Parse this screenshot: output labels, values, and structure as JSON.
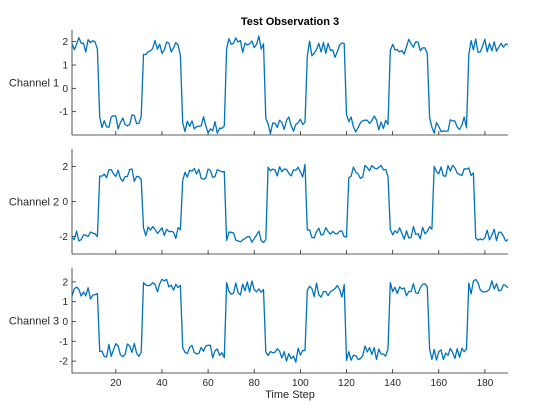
{
  "chart_data": {
    "type": "line",
    "title": "Test Observation 3",
    "xlabel": "Time Step",
    "x_range": [
      1,
      190
    ],
    "x_ticks": [
      20,
      40,
      60,
      80,
      100,
      120,
      140,
      160,
      180
    ],
    "line_color": "#0072BD",
    "grid": false,
    "panels": [
      {
        "name": "Channel 1",
        "ylim": [
          -2,
          2.5
        ],
        "y_ticks": [
          -1,
          0,
          1,
          2
        ],
        "segments": [
          {
            "from": 1,
            "to": 12,
            "value": 1.8
          },
          {
            "from": 13,
            "to": 31,
            "value": -1.45
          },
          {
            "from": 32,
            "to": 48,
            "value": 1.7
          },
          {
            "from": 49,
            "to": 67,
            "value": -1.55
          },
          {
            "from": 68,
            "to": 84,
            "value": 1.9
          },
          {
            "from": 85,
            "to": 102,
            "value": -1.6
          },
          {
            "from": 103,
            "to": 119,
            "value": 1.7
          },
          {
            "from": 120,
            "to": 138,
            "value": -1.5
          },
          {
            "from": 139,
            "to": 155,
            "value": 1.75
          },
          {
            "from": 156,
            "to": 172,
            "value": -1.55
          },
          {
            "from": 173,
            "to": 190,
            "value": 1.75
          }
        ]
      },
      {
        "name": "Channel 2",
        "ylim": [
          -3,
          3
        ],
        "y_ticks": [
          -2,
          0,
          2
        ],
        "segments": [
          {
            "from": 1,
            "to": 12,
            "value": -1.9
          },
          {
            "from": 13,
            "to": 31,
            "value": 1.5
          },
          {
            "from": 32,
            "to": 48,
            "value": -1.8
          },
          {
            "from": 49,
            "to": 67,
            "value": 1.55
          },
          {
            "from": 68,
            "to": 85,
            "value": -2.0
          },
          {
            "from": 86,
            "to": 102,
            "value": 1.75
          },
          {
            "from": 103,
            "to": 120,
            "value": -1.85
          },
          {
            "from": 121,
            "to": 138,
            "value": 1.7
          },
          {
            "from": 139,
            "to": 157,
            "value": -1.8
          },
          {
            "from": 158,
            "to": 175,
            "value": 1.8
          },
          {
            "from": 176,
            "to": 190,
            "value": -1.9
          }
        ]
      },
      {
        "name": "Channel 3",
        "ylim": [
          -2.6,
          2.7
        ],
        "y_ticks": [
          -2,
          -1,
          0,
          1,
          2
        ],
        "segments": [
          {
            "from": 1,
            "to": 12,
            "value": 1.5
          },
          {
            "from": 13,
            "to": 31,
            "value": -1.45
          },
          {
            "from": 32,
            "to": 48,
            "value": 1.85
          },
          {
            "from": 49,
            "to": 67,
            "value": -1.55
          },
          {
            "from": 68,
            "to": 84,
            "value": 1.7
          },
          {
            "from": 85,
            "to": 102,
            "value": -1.7
          },
          {
            "from": 103,
            "to": 119,
            "value": 1.6
          },
          {
            "from": 120,
            "to": 138,
            "value": -1.6
          },
          {
            "from": 139,
            "to": 155,
            "value": 1.65
          },
          {
            "from": 156,
            "to": 172,
            "value": -1.65
          },
          {
            "from": 173,
            "to": 190,
            "value": 1.75
          }
        ]
      }
    ]
  }
}
